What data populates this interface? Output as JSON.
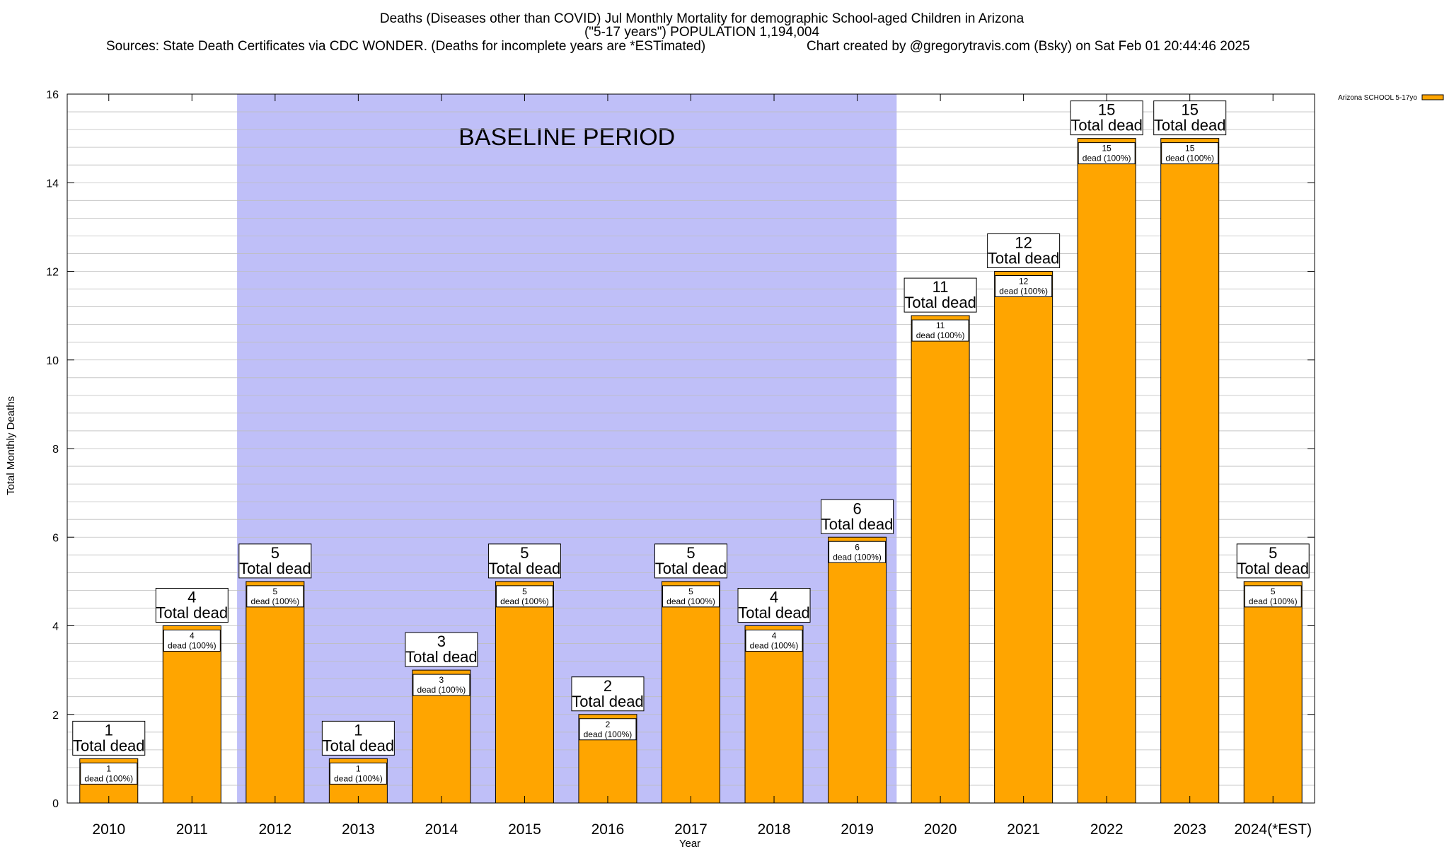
{
  "title_lines": [
    "Deaths (Diseases other than COVID) Jul Monthly Mortality for demographic School-aged Children in Arizona",
    "(\"5-17 years\") POPULATION 1,194,004"
  ],
  "sources_text": "Sources: State Death Certificates via CDC WONDER. (Deaths for incomplete years are *ESTimated)",
  "credit_text": "Chart created by @gregorytravis.com (Bsky) on Sat Feb 01 20:44:46 2025",
  "colors": {
    "bar": "#FFA500",
    "baseline_band": "#BFBFF8",
    "grid": "#BEBEBE"
  },
  "chart_data": {
    "type": "bar",
    "title": "Deaths (Diseases other than COVID) Jul Monthly Mortality for demographic School-aged Children in Arizona",
    "xlabel": "Year",
    "ylabel": "Total Monthly Deaths",
    "ylim": [
      0,
      16
    ],
    "yticks": [
      0,
      2,
      4,
      6,
      8,
      10,
      12,
      14,
      16
    ],
    "minor_step": 0.4,
    "grid": true,
    "legend_position": "top-right",
    "categories": [
      "2010",
      "2011",
      "2012",
      "2013",
      "2014",
      "2015",
      "2016",
      "2017",
      "2018",
      "2019",
      "2020",
      "2021",
      "2022",
      "2023",
      "2024(*EST)"
    ],
    "series": [
      {
        "name": "Arizona SCHOOL 5-17yo",
        "values": [
          1,
          4,
          5,
          1,
          3,
          5,
          2,
          5,
          4,
          6,
          11,
          12,
          15,
          15,
          5
        ],
        "inner_labels_line1": [
          "1",
          "4",
          "5",
          "1",
          "3",
          "5",
          "2",
          "5",
          "4",
          "6",
          "11",
          "12",
          "15",
          "15",
          "5"
        ],
        "inner_labels_line2": [
          "dead (100%)",
          "dead (100%)",
          "dead (100%)",
          "dead (100%)",
          "dead (100%)",
          "dead (100%)",
          "dead (100%)",
          "dead (100%)",
          "dead (100%)",
          "dead (100%)",
          "dead (100%)",
          "dead (100%)",
          "dead (100%)",
          "dead (100%)",
          "dead (100%)"
        ]
      }
    ],
    "total_labels_line1": [
      "1",
      "4",
      "5",
      "1",
      "3",
      "5",
      "2",
      "5",
      "4",
      "6",
      "11",
      "12",
      "15",
      "15",
      "5"
    ],
    "total_labels_line2": [
      "Total dead",
      "Total dead",
      "Total dead",
      "Total dead",
      "Total dead",
      "Total dead",
      "Total dead",
      "Total dead",
      "Total dead",
      "Total dead",
      "Total dead",
      "Total dead",
      "Total dead",
      "Total dead",
      "Total dead"
    ],
    "annotations": [
      {
        "text": "BASELINE PERIOD",
        "from_category": "2012",
        "to_category": "2019"
      }
    ]
  }
}
